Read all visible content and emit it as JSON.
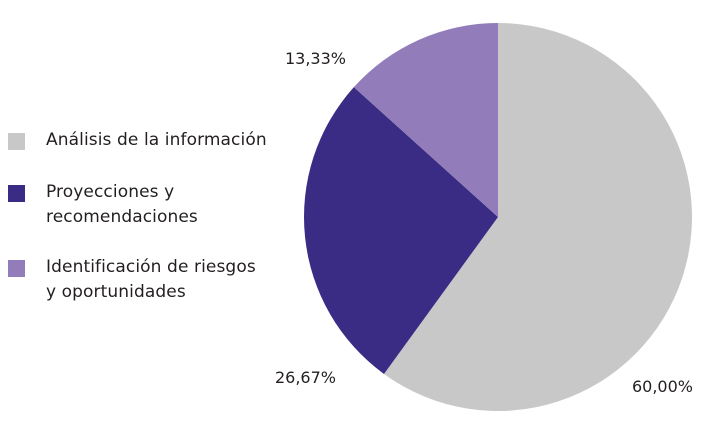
{
  "chart_data": {
    "type": "pie",
    "title": "",
    "legend_position": "left",
    "start_angle": "top",
    "direction": "clockwise",
    "slices": [
      {
        "label": "Análisis de la información",
        "value": 60.0,
        "value_label": "60,00%",
        "color": "#c8c8c8"
      },
      {
        "label": "Proyecciones y\nrecomendaciones",
        "value": 26.67,
        "value_label": "26,67%",
        "color": "#3a2c85"
      },
      {
        "label": "Identificación de riesgos\ny oportunidades",
        "value": 13.33,
        "value_label": "13,33%",
        "color": "#927dba"
      }
    ]
  }
}
